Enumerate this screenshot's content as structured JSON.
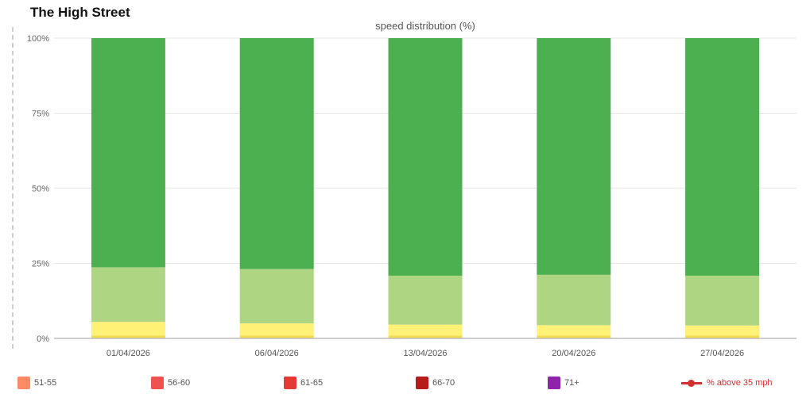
{
  "page": {
    "title": "The High Street"
  },
  "chart_data": {
    "type": "bar",
    "stacked": true,
    "title": "speed distribution (%)",
    "xlabel": "",
    "ylabel": "",
    "ylim": [
      0,
      100
    ],
    "ytick_labels": [
      "0%",
      "25%",
      "50%",
      "75%",
      "100%"
    ],
    "ytick_values": [
      0,
      25,
      50,
      75,
      100
    ],
    "grid": true,
    "categories": [
      "01/04/2026",
      "06/04/2026",
      "13/04/2026",
      "20/04/2026",
      "27/04/2026"
    ],
    "series": [
      {
        "color": "#f5dc4b",
        "values": [
          1.0,
          1.0,
          1.0,
          1.0,
          1.0
        ]
      },
      {
        "color": "#fff176",
        "values": [
          4.5,
          4.0,
          3.6,
          3.4,
          3.3
        ]
      },
      {
        "color": "#aed581",
        "values": [
          18.2,
          18.1,
          16.3,
          16.8,
          16.6
        ]
      },
      {
        "color": "#4caf50",
        "values": [
          76.3,
          76.9,
          79.1,
          78.8,
          79.1
        ]
      }
    ],
    "legend_position": "bottom",
    "legend": [
      {
        "name": "51-55",
        "color": "#ff8a65",
        "kind": "swatch"
      },
      {
        "name": "56-60",
        "color": "#ef5350",
        "kind": "swatch"
      },
      {
        "name": "61-65",
        "color": "#e53935",
        "kind": "swatch"
      },
      {
        "name": "66-70",
        "color": "#b71c1c",
        "kind": "swatch"
      },
      {
        "name": "71+",
        "color": "#8e24aa",
        "kind": "swatch"
      },
      {
        "name": "% above 35 mph",
        "color": "#d32f2f",
        "kind": "line"
      }
    ]
  }
}
